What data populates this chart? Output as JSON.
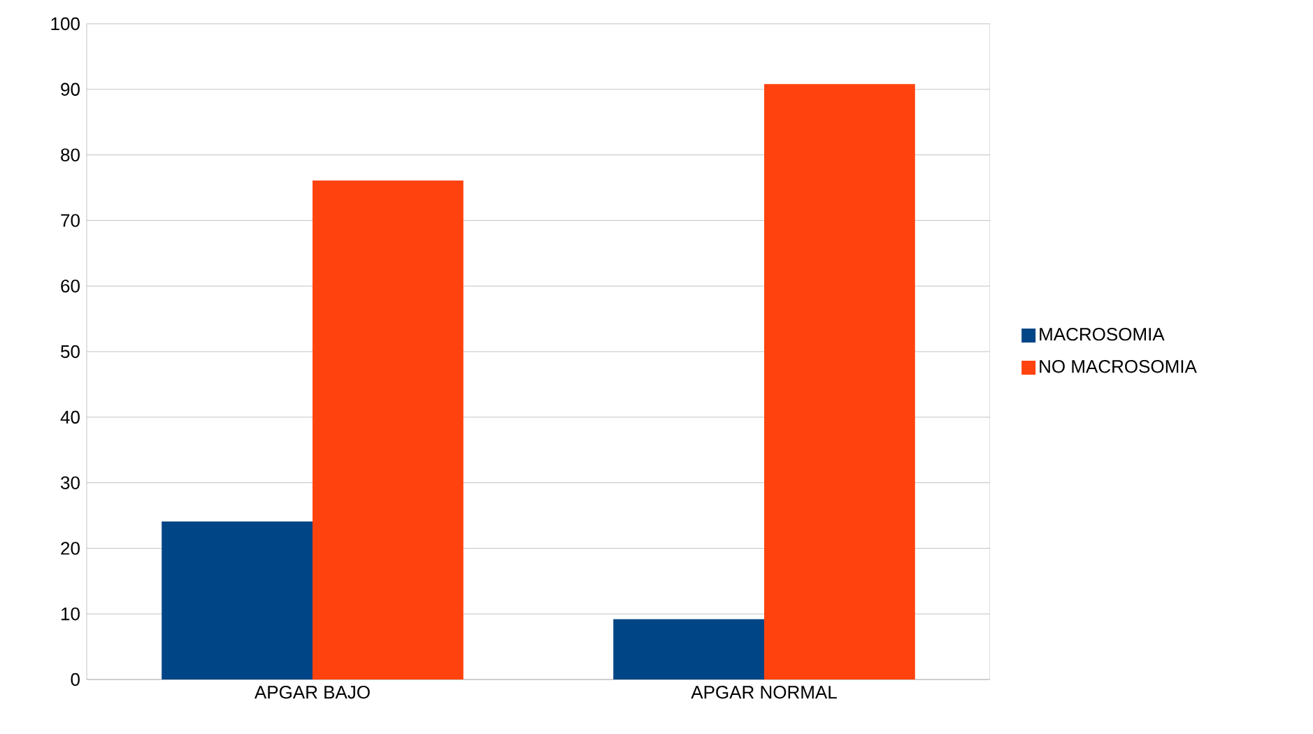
{
  "chart_data": {
    "type": "bar",
    "categories": [
      "APGAR BAJO",
      "APGAR NORMAL"
    ],
    "series": [
      {
        "name": "MACROSOMIA",
        "color": "#004586",
        "values": [
          24.1,
          9.2
        ]
      },
      {
        "name": "NO MACROSOMIA",
        "color": "#ff420e",
        "values": [
          76.1,
          90.8
        ]
      }
    ],
    "ylim": [
      0,
      100
    ],
    "yticks": [
      0,
      10,
      20,
      30,
      40,
      50,
      60,
      70,
      80,
      90,
      100
    ],
    "grid": "y",
    "legend": "right"
  }
}
